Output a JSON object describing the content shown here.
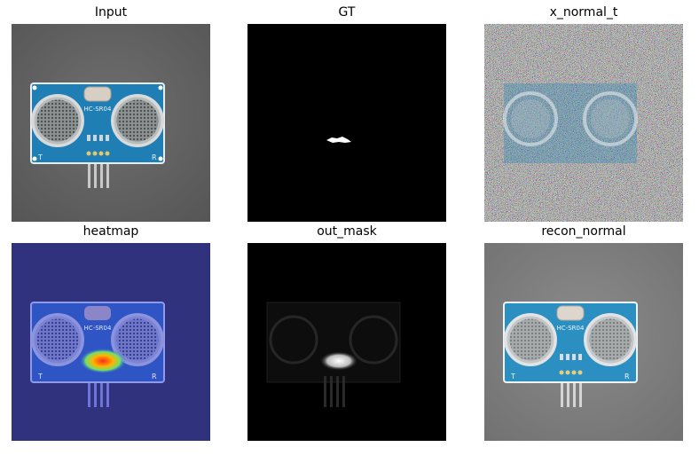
{
  "figure": {
    "panels": [
      {
        "title": "Input"
      },
      {
        "title": "GT"
      },
      {
        "title": "x_normal_t"
      },
      {
        "title": "heatmap"
      },
      {
        "title": "out_mask"
      },
      {
        "title": "recon_normal"
      }
    ],
    "board_text": {
      "model": "HC-SR04",
      "left_mark": "T",
      "right_mark": "R"
    }
  }
}
